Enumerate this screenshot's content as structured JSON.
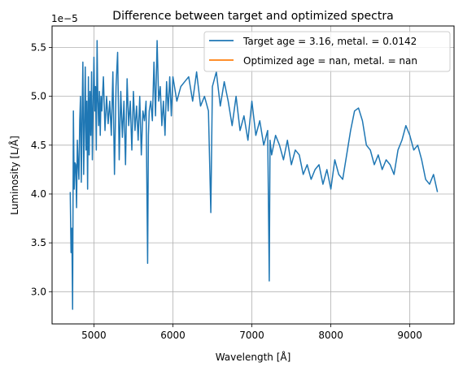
{
  "chart_data": {
    "type": "line",
    "title": "Difference between target and optimized spectra",
    "xlabel": "Wavelength [Å]",
    "ylabel": "Luminosity [L/Å]",
    "y_offset_label": "1e−5",
    "y_scale": 1e-05,
    "xlim": [
      4470,
      9560
    ],
    "ylim": [
      2.67,
      5.72
    ],
    "x_ticks": [
      5000,
      6000,
      7000,
      8000,
      9000
    ],
    "x_tick_labels": [
      "5000",
      "6000",
      "7000",
      "8000",
      "9000"
    ],
    "y_ticks": [
      3.0,
      3.5,
      4.0,
      4.5,
      5.0,
      5.5
    ],
    "y_tick_labels": [
      "3.0",
      "3.5",
      "4.0",
      "4.5",
      "5.0",
      "5.5"
    ],
    "grid": true,
    "legend_position": "top-right",
    "series": [
      {
        "name": "Target age = 3.16, metal. = 0.0142",
        "color": "#1f77b4",
        "x": [
          4700,
          4710,
          4720,
          4730,
          4740,
          4750,
          4760,
          4770,
          4780,
          4790,
          4800,
          4810,
          4820,
          4830,
          4840,
          4850,
          4860,
          4870,
          4880,
          4890,
          4900,
          4910,
          4920,
          4930,
          4940,
          4950,
          4960,
          4970,
          4980,
          4990,
          5000,
          5010,
          5020,
          5030,
          5040,
          5050,
          5060,
          5070,
          5080,
          5090,
          5100,
          5120,
          5140,
          5160,
          5180,
          5200,
          5220,
          5240,
          5260,
          5280,
          5300,
          5320,
          5340,
          5360,
          5380,
          5400,
          5420,
          5440,
          5460,
          5480,
          5500,
          5520,
          5540,
          5560,
          5580,
          5600,
          5620,
          5640,
          5660,
          5680,
          5690,
          5700,
          5720,
          5740,
          5760,
          5780,
          5800,
          5820,
          5840,
          5860,
          5880,
          5900,
          5920,
          5940,
          5960,
          5980,
          6000,
          6050,
          6100,
          6150,
          6200,
          6250,
          6300,
          6350,
          6400,
          6450,
          6480,
          6500,
          6550,
          6600,
          6650,
          6700,
          6750,
          6800,
          6850,
          6900,
          6950,
          7000,
          7050,
          7100,
          7150,
          7200,
          7220,
          7230,
          7250,
          7300,
          7350,
          7400,
          7450,
          7500,
          7550,
          7600,
          7650,
          7700,
          7750,
          7800,
          7850,
          7900,
          7950,
          8000,
          8050,
          8100,
          8150,
          8200,
          8250,
          8300,
          8350,
          8400,
          8450,
          8500,
          8550,
          8600,
          8650,
          8700,
          8750,
          8800,
          8850,
          8900,
          8950,
          9000,
          9050,
          9100,
          9150,
          9200,
          9250,
          9300,
          9350
        ],
        "values": [
          4.02,
          3.4,
          3.65,
          2.82,
          4.85,
          4.05,
          4.32,
          4.3,
          3.86,
          4.55,
          4.3,
          4.15,
          4.75,
          5.0,
          4.12,
          4.8,
          5.35,
          4.2,
          4.68,
          5.3,
          4.45,
          4.95,
          4.05,
          5.2,
          4.4,
          5.05,
          4.6,
          5.25,
          4.35,
          4.9,
          5.4,
          4.85,
          5.1,
          4.45,
          5.57,
          4.95,
          4.7,
          5.05,
          4.6,
          5.0,
          4.85,
          5.2,
          4.65,
          5.0,
          4.72,
          4.95,
          4.6,
          5.25,
          4.2,
          5.1,
          5.45,
          4.35,
          5.05,
          4.58,
          4.95,
          4.3,
          5.18,
          4.7,
          4.95,
          4.45,
          5.05,
          4.65,
          4.9,
          4.55,
          5.0,
          4.4,
          4.85,
          4.75,
          4.95,
          3.29,
          4.6,
          4.85,
          4.95,
          4.75,
          5.35,
          4.8,
          5.57,
          4.95,
          5.1,
          4.7,
          4.95,
          4.6,
          5.15,
          4.85,
          5.2,
          4.8,
          5.2,
          4.95,
          5.1,
          5.15,
          5.2,
          4.95,
          5.25,
          4.9,
          5.0,
          4.85,
          3.81,
          5.1,
          5.25,
          4.9,
          5.15,
          4.95,
          4.7,
          5.0,
          4.65,
          4.8,
          4.55,
          4.95,
          4.6,
          4.75,
          4.5,
          4.65,
          3.11,
          4.55,
          4.4,
          4.6,
          4.5,
          4.35,
          4.55,
          4.3,
          4.45,
          4.4,
          4.2,
          4.3,
          4.15,
          4.25,
          4.3,
          4.1,
          4.25,
          4.05,
          4.35,
          4.2,
          4.15,
          4.4,
          4.65,
          4.85,
          4.88,
          4.75,
          4.5,
          4.45,
          4.3,
          4.4,
          4.25,
          4.35,
          4.3,
          4.2,
          4.45,
          4.55,
          4.7,
          4.6,
          4.45,
          4.5,
          4.35,
          4.15,
          4.1,
          4.2,
          4.02
        ]
      },
      {
        "name": "Optimized age = nan, metal. = nan",
        "color": "#ff7f0e",
        "x": [],
        "values": []
      }
    ]
  }
}
